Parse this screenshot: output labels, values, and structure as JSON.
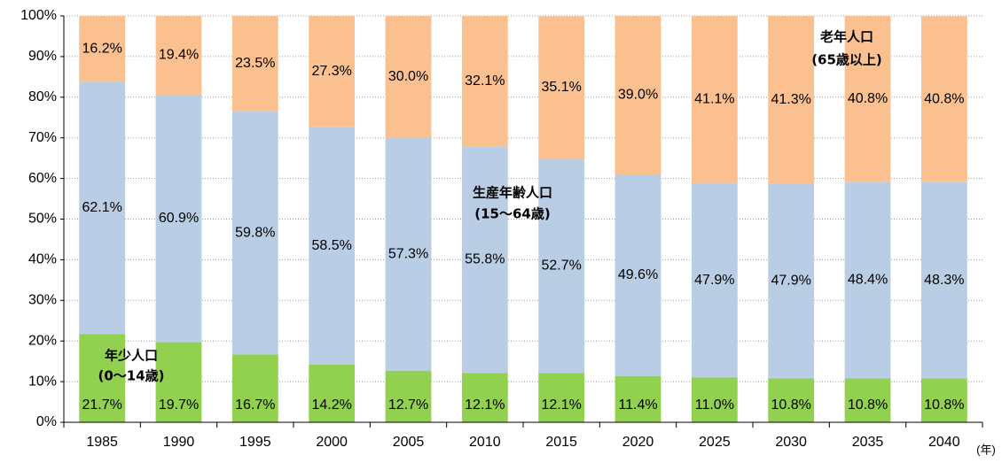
{
  "chart_data": {
    "type": "stacked_bar",
    "categories": [
      "1985",
      "1990",
      "1995",
      "2000",
      "2005",
      "2010",
      "2015",
      "2020",
      "2025",
      "2030",
      "2035",
      "2040"
    ],
    "x_label": "(年)",
    "series": [
      {
        "name": "年少人口",
        "age_range": "(0～14歳)",
        "color": "#92d050",
        "values": [
          21.7,
          19.7,
          16.7,
          14.2,
          12.7,
          12.1,
          12.1,
          11.4,
          11.0,
          10.8,
          10.8,
          10.8
        ],
        "value_labels": [
          "21.7%",
          "19.7%",
          "16.7%",
          "14.2%",
          "12.7%",
          "12.1%",
          "12.1%",
          "11.4%",
          "11.0%",
          "10.8%",
          "10.8%",
          "10.8%"
        ]
      },
      {
        "name": "生産年齢人口",
        "age_range": "(15～64歳)",
        "color": "#b9cde5",
        "values": [
          62.1,
          60.9,
          59.8,
          58.5,
          57.3,
          55.8,
          52.7,
          49.6,
          47.9,
          47.9,
          48.4,
          48.3
        ],
        "value_labels": [
          "62.1%",
          "60.9%",
          "59.8%",
          "58.5%",
          "57.3%",
          "55.8%",
          "52.7%",
          "49.6%",
          "47.9%",
          "47.9%",
          "48.4%",
          "48.3%"
        ]
      },
      {
        "name": "老年人口",
        "age_range": "(65歳以上)",
        "color": "#fac090",
        "values": [
          16.2,
          19.4,
          23.5,
          27.3,
          30.0,
          32.1,
          35.1,
          39.0,
          41.1,
          41.3,
          40.8,
          40.8
        ],
        "value_labels": [
          "16.2%",
          "19.4%",
          "23.5%",
          "27.3%",
          "30.0%",
          "32.1%",
          "35.1%",
          "39.0%",
          "41.1%",
          "41.3%",
          "40.8%",
          "40.8%"
        ]
      }
    ],
    "ylim": [
      0,
      100
    ],
    "yticks": [
      {
        "value": 0,
        "label": "0%"
      },
      {
        "value": 10,
        "label": "10%"
      },
      {
        "value": 20,
        "label": "20%"
      },
      {
        "value": 30,
        "label": "30%"
      },
      {
        "value": 40,
        "label": "40%"
      },
      {
        "value": 50,
        "label": "50%"
      },
      {
        "value": 60,
        "label": "60%"
      },
      {
        "value": 70,
        "label": "70%"
      },
      {
        "value": 80,
        "label": "80%"
      },
      {
        "value": 90,
        "label": "90%"
      },
      {
        "value": 100,
        "label": "100%"
      }
    ],
    "grid": true
  }
}
